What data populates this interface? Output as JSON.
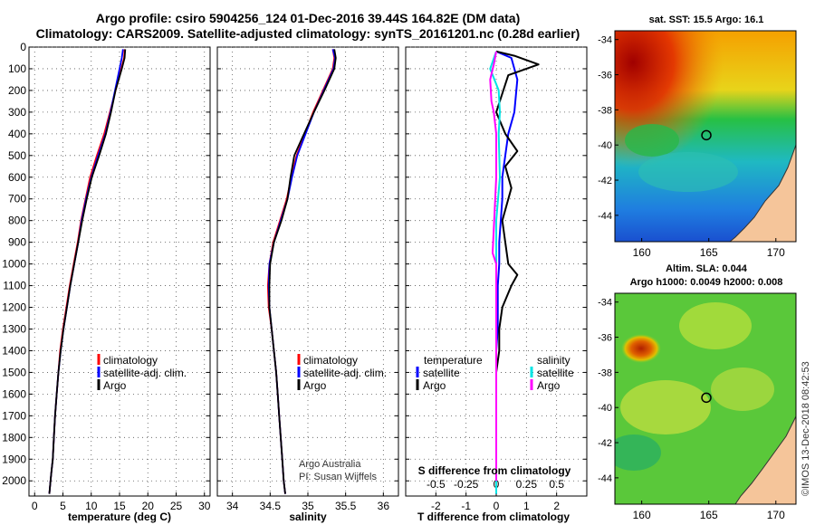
{
  "header": {
    "title_line1": "Argo profile: csiro 5904256_124 01-Dec-2016 39.44S 164.82E (DM data)",
    "title_line2": "Climatology: CARS2009. Satellite-adjusted climatology: synTS_20161201.nc (0.28d earlier)"
  },
  "credits": {
    "line1": "Argo Australia",
    "line2": "PI: Susan Wijffels",
    "stamp": "©IMOS 13-Dec-2018 08:42:53"
  },
  "colors": {
    "climatology": "#ff0000",
    "satellite_adj": "#0000ff",
    "argo": "#000000",
    "s_satellite": "#00e5e5",
    "s_argo": "#ff00ff",
    "land": "#f5c59a"
  },
  "chart_data": [
    {
      "id": "temperature",
      "type": "line",
      "xlabel": "temperature (deg C)",
      "ylabel": "",
      "xlim": [
        -1,
        31
      ],
      "ylim": [
        2070,
        0
      ],
      "xticks": [
        0,
        5,
        10,
        15,
        20,
        25,
        30
      ],
      "yticks": [
        0,
        100,
        200,
        300,
        400,
        500,
        600,
        700,
        800,
        900,
        1000,
        1100,
        1200,
        1300,
        1400,
        1500,
        1600,
        1700,
        1800,
        1900,
        2000
      ],
      "legend": [
        "climatology",
        "satellite-adj. clim.",
        "Argo"
      ],
      "series": [
        {
          "name": "climatology",
          "color": "#ff0000",
          "x": [
            15.9,
            15.8,
            15.3,
            14.3,
            13.3,
            12.3,
            11.0,
            9.8,
            9.0,
            8.2,
            7.6,
            6.9,
            6.2,
            5.6,
            5.0,
            4.5,
            4.2,
            3.9,
            3.6,
            3.4,
            3.2,
            3.0,
            2.8,
            2.6
          ],
          "y": [
            10,
            50,
            100,
            200,
            300,
            400,
            500,
            600,
            700,
            800,
            900,
            1000,
            1100,
            1200,
            1300,
            1400,
            1500,
            1600,
            1700,
            1800,
            1900,
            1950,
            2000,
            2060
          ]
        },
        {
          "name": "satellite-adj. clim.",
          "color": "#0000ff",
          "x": [
            15.6,
            15.4,
            15.0,
            14.2,
            13.4,
            12.5,
            11.2,
            10.0,
            9.1,
            8.3,
            7.7,
            7.0,
            6.3,
            5.7,
            5.1,
            4.6,
            4.2,
            3.9,
            3.6,
            3.4,
            3.2,
            3.0,
            2.8,
            2.6
          ],
          "y": [
            10,
            50,
            100,
            200,
            300,
            400,
            500,
            600,
            700,
            800,
            900,
            1000,
            1100,
            1200,
            1300,
            1400,
            1500,
            1600,
            1700,
            1800,
            1900,
            1950,
            2000,
            2060
          ]
        },
        {
          "name": "Argo",
          "color": "#000000",
          "x": [
            16.0,
            15.9,
            15.4,
            14.3,
            13.5,
            12.6,
            11.4,
            10.1,
            9.2,
            8.4,
            7.7,
            7.0,
            6.3,
            5.7,
            5.1,
            4.6,
            4.2,
            3.9,
            3.6,
            3.4,
            3.2,
            3.0,
            2.8,
            2.6
          ],
          "y": [
            10,
            50,
            100,
            200,
            300,
            400,
            500,
            600,
            700,
            800,
            900,
            1000,
            1100,
            1200,
            1300,
            1400,
            1500,
            1600,
            1700,
            1800,
            1900,
            1950,
            2000,
            2060
          ]
        }
      ]
    },
    {
      "id": "salinity",
      "type": "line",
      "xlabel": "salinity",
      "xlim": [
        33.8,
        36.2
      ],
      "ylim": [
        2070,
        0
      ],
      "xticks": [
        34,
        34.5,
        35,
        35.5,
        36
      ],
      "legend": [
        "climatology",
        "satellite-adj. clim.",
        "Argo"
      ],
      "series": [
        {
          "name": "climatology",
          "color": "#ff0000",
          "x": [
            35.33,
            35.35,
            35.33,
            35.2,
            35.07,
            34.96,
            34.85,
            34.78,
            34.72,
            34.63,
            34.54,
            34.49,
            34.47,
            34.48,
            34.52,
            34.55,
            34.58,
            34.6,
            34.62,
            34.64,
            34.66,
            34.68,
            34.7
          ],
          "y": [
            10,
            50,
            100,
            200,
            300,
            400,
            500,
            600,
            700,
            800,
            900,
            1000,
            1100,
            1200,
            1300,
            1400,
            1500,
            1600,
            1700,
            1800,
            1900,
            2000,
            2060
          ]
        },
        {
          "name": "satellite-adj. clim.",
          "color": "#0000ff",
          "x": [
            35.33,
            35.36,
            35.34,
            35.21,
            35.08,
            34.97,
            34.86,
            34.79,
            34.73,
            34.64,
            34.55,
            34.49,
            34.48,
            34.49,
            34.52,
            34.55,
            34.58,
            34.6,
            34.62,
            34.64,
            34.66,
            34.68,
            34.7
          ],
          "y": [
            10,
            50,
            100,
            200,
            300,
            400,
            500,
            600,
            700,
            800,
            900,
            1000,
            1100,
            1200,
            1300,
            1400,
            1500,
            1600,
            1700,
            1800,
            1900,
            2000,
            2060
          ]
        },
        {
          "name": "Argo",
          "color": "#000000",
          "x": [
            35.35,
            35.37,
            35.35,
            35.22,
            35.08,
            34.95,
            34.82,
            34.77,
            34.73,
            34.65,
            34.55,
            34.5,
            34.49,
            34.49,
            34.52,
            34.55,
            34.58,
            34.6,
            34.62,
            34.64,
            34.66,
            34.68,
            34.7
          ],
          "y": [
            10,
            50,
            100,
            200,
            300,
            400,
            500,
            600,
            700,
            800,
            900,
            1000,
            1100,
            1200,
            1300,
            1400,
            1500,
            1600,
            1700,
            1800,
            1900,
            2000,
            2060
          ]
        }
      ]
    },
    {
      "id": "difference",
      "type": "line",
      "xlabel": "T difference from climatology",
      "xlabel2": "S difference from climatology",
      "xlim": [
        -3,
        3
      ],
      "x2lim": [
        -0.75,
        0.75
      ],
      "ylim": [
        2070,
        0
      ],
      "xticks": [
        -2,
        -1,
        0,
        1,
        2
      ],
      "x2ticks": [
        -0.5,
        -0.25,
        0,
        0.25,
        0.5
      ],
      "x2ticklabels": [
        "-0.5",
        "-0.25",
        "0",
        "0.25",
        "0.5"
      ],
      "legend_temperature_title": "temperature",
      "legend_salinity_title": "salinity",
      "legend_temperature": [
        "satellite",
        "Argo"
      ],
      "legend_salinity": [
        "satellite",
        "Argo"
      ],
      "series": [
        {
          "name": "T satellite",
          "color": "#0000ff",
          "x": [
            0.0,
            0.5,
            0.7,
            0.6,
            0.4,
            0.3,
            0.2,
            0.2,
            0.15,
            0.1,
            0.1,
            0.05,
            0.05,
            0.05,
            0.0,
            0.0,
            0.0,
            0.0,
            0.0,
            0.0,
            0.0,
            0.0
          ],
          "y": [
            20,
            50,
            150,
            300,
            400,
            500,
            600,
            700,
            800,
            900,
            1000,
            1100,
            1200,
            1300,
            1400,
            1500,
            1600,
            1700,
            1800,
            1900,
            2000,
            2060
          ]
        },
        {
          "name": "T Argo",
          "color": "#000000",
          "x": [
            0.0,
            0.6,
            1.4,
            0.4,
            0.0,
            0.3,
            0.7,
            0.3,
            0.5,
            0.2,
            0.3,
            0.4,
            0.7,
            0.5,
            0.2,
            0.1,
            0.1,
            0.0,
            0.0,
            0.0,
            0.0,
            0.0,
            0.0,
            0.0
          ],
          "y": [
            20,
            40,
            80,
            130,
            300,
            400,
            480,
            550,
            650,
            800,
            900,
            1000,
            1050,
            1100,
            1200,
            1300,
            1400,
            1500,
            1600,
            1700,
            1800,
            1900,
            2000,
            2060
          ]
        },
        {
          "name": "S satellite",
          "color": "#00e5e5",
          "x": [
            0.0,
            -0.05,
            0.02,
            0.03,
            0.02,
            0.03,
            0.0,
            0.0,
            0.0,
            0.0,
            0.0,
            0.0,
            0.0,
            0.0,
            0.0,
            0.0,
            0.0,
            0.0,
            0.0,
            0.0
          ],
          "y": [
            20,
            100,
            200,
            300,
            400,
            600,
            800,
            900,
            1000,
            1100,
            1200,
            1300,
            1400,
            1500,
            1600,
            1700,
            1800,
            1900,
            2000,
            2060
          ]
        },
        {
          "name": "S Argo",
          "color": "#ff00ff",
          "x": [
            0.0,
            -0.02,
            -0.05,
            -0.04,
            -0.02,
            0.0,
            0.0,
            -0.03,
            0.0,
            0.0,
            0.0,
            0.0,
            0.0,
            0.0,
            0.0,
            0.0,
            0.0,
            0.0
          ],
          "y": [
            20,
            80,
            150,
            250,
            300,
            400,
            600,
            950,
            1000,
            1100,
            1200,
            1300,
            1400,
            1500,
            1600,
            1700,
            1800,
            2000
          ]
        }
      ]
    },
    {
      "id": "sst_map",
      "type": "heatmap",
      "title": "sat. SST: 15.5 Argo: 16.1",
      "xticks": [
        160,
        165,
        170
      ],
      "yticks": [
        -34,
        -36,
        -38,
        -40,
        -42,
        -44
      ],
      "yticklabels": [
        "-34",
        "-36",
        "-38",
        "-40",
        "-42",
        "-44"
      ],
      "xlim": [
        158,
        171.5
      ],
      "ylim": [
        -45.5,
        -33.5
      ],
      "marker": {
        "lon": 164.82,
        "lat": -39.44
      }
    },
    {
      "id": "sla_map",
      "type": "heatmap",
      "title": "Altim. SLA: 0.044",
      "title2": "Argo h1000: 0.0049 h2000: 0.008",
      "xticks": [
        160,
        165,
        170
      ],
      "yticks": [
        -34,
        -36,
        -38,
        -40,
        -42,
        -44
      ],
      "yticklabels": [
        "-34",
        "-36",
        "-38",
        "-40",
        "-42",
        "-44"
      ],
      "xlim": [
        158,
        171.5
      ],
      "ylim": [
        -45.5,
        -33.5
      ],
      "marker": {
        "lon": 164.82,
        "lat": -39.44
      }
    }
  ]
}
